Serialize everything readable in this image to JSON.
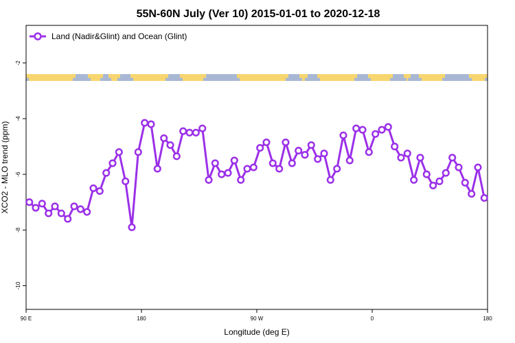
{
  "chart_data": {
    "type": "line",
    "title": "55N-60N July (Ver 10)   2015-01-01 to 2020-12-18",
    "xlabel": "Longitude (deg E)",
    "ylabel": "XCO2 - MLO trend (ppm)",
    "xlim": [
      90,
      450
    ],
    "ylim": [
      -10.85,
      -0.65
    ],
    "x_ticks": [
      {
        "value": 90,
        "label": "90 E"
      },
      {
        "value": 180,
        "label": "180"
      },
      {
        "value": 270,
        "label": "90 W"
      },
      {
        "value": 360,
        "label": "0"
      },
      {
        "value": 450,
        "label": "180"
      }
    ],
    "y_ticks": [
      {
        "value": -2,
        "label": "-2"
      },
      {
        "value": -4,
        "label": "-4"
      },
      {
        "value": -6,
        "label": "-6"
      },
      {
        "value": -8,
        "label": "-8"
      },
      {
        "value": -10,
        "label": "-10"
      }
    ],
    "grid": false,
    "legend_position": "top-left",
    "series": [
      {
        "name": "Land (Nadir&Glint) and Ocean (Glint)",
        "color": "#9b30e8",
        "x": [
          92.5,
          97.5,
          102.5,
          107.5,
          112.5,
          117.5,
          122.5,
          127.5,
          132.5,
          137.5,
          142.5,
          147.5,
          152.5,
          157.5,
          162.5,
          167.5,
          172.5,
          177.5,
          182.5,
          187.5,
          192.5,
          197.5,
          202.5,
          207.5,
          212.5,
          217.5,
          222.5,
          227.5,
          232.5,
          237.5,
          242.5,
          247.5,
          252.5,
          257.5,
          262.5,
          267.5,
          272.5,
          277.5,
          282.5,
          287.5,
          292.5,
          297.5,
          302.5,
          307.5,
          312.5,
          317.5,
          322.5,
          327.5,
          332.5,
          337.5,
          342.5,
          347.5,
          352.5,
          357.5,
          362.5,
          367.5,
          372.5,
          377.5,
          382.5,
          387.5,
          392.5,
          397.5,
          402.5,
          407.5,
          412.5,
          417.5,
          422.5,
          427.5,
          432.5,
          437.5,
          442.5,
          447.5
        ],
        "y": [
          -7.0,
          -7.2,
          -7.05,
          -7.4,
          -7.15,
          -7.4,
          -7.6,
          -7.15,
          -7.25,
          -7.35,
          -6.5,
          -6.6,
          -5.95,
          -5.6,
          -5.2,
          -6.25,
          -7.9,
          -5.2,
          -4.15,
          -4.2,
          -5.8,
          -4.7,
          -4.95,
          -5.35,
          -4.45,
          -4.5,
          -4.5,
          -4.35,
          -6.2,
          -5.6,
          -6.0,
          -5.95,
          -5.5,
          -6.2,
          -5.8,
          -5.75,
          -5.05,
          -4.85,
          -5.6,
          -5.8,
          -4.85,
          -5.6,
          -5.15,
          -5.3,
          -4.95,
          -5.45,
          -5.25,
          -6.2,
          -5.8,
          -4.6,
          -5.5,
          -4.35,
          -4.4,
          -5.2,
          -4.55,
          -4.4,
          -4.3,
          -5.0,
          -5.4,
          -5.25,
          -6.2,
          -5.4,
          -6.0,
          -6.4,
          -6.25,
          -5.95,
          -5.4,
          -5.75,
          -6.3,
          -6.7,
          -5.75,
          -6.85
        ]
      }
    ]
  },
  "legend": {
    "entries": [
      "Land (Nadir&Glint) and Ocean (Glint)"
    ]
  },
  "colors": {
    "series": "#9b30e8",
    "map_ocean": "#a8b8d4",
    "map_land": "#f8d66f"
  }
}
